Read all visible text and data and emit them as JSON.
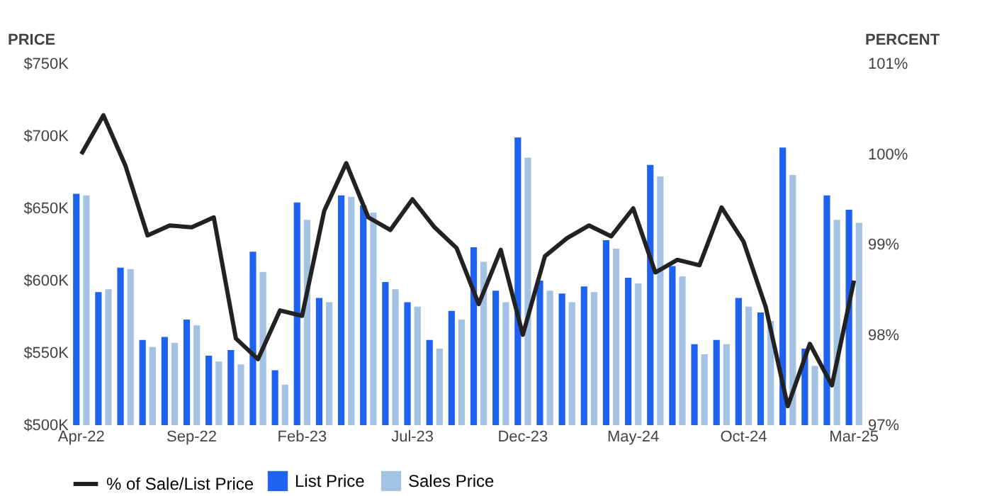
{
  "chart_data": {
    "type": "bar",
    "categories": [
      "Apr-22",
      null,
      null,
      null,
      null,
      "Sep-22",
      null,
      null,
      null,
      null,
      "Feb-23",
      null,
      null,
      null,
      null,
      "Jul-23",
      null,
      null,
      null,
      null,
      "Dec-23",
      null,
      null,
      null,
      null,
      "May-24",
      null,
      null,
      null,
      null,
      "Oct-24",
      null,
      null,
      null,
      null,
      "Mar-25"
    ],
    "series": [
      {
        "name": "% of Sale/List Price",
        "type": "line",
        "axis": "y2",
        "color": "#222222",
        "values": [
          100.0,
          100.43,
          99.87,
          99.1,
          99.21,
          99.19,
          99.3,
          97.96,
          97.73,
          98.27,
          98.21,
          99.37,
          99.9,
          99.3,
          99.16,
          99.5,
          99.19,
          98.96,
          98.34,
          98.94,
          98.0,
          98.87,
          99.07,
          99.21,
          99.09,
          99.4,
          98.69,
          98.83,
          98.77,
          99.41,
          99.03,
          98.31,
          97.21,
          97.9,
          97.44,
          98.6
        ]
      },
      {
        "name": "List Price",
        "type": "bar",
        "color": "#1f62f0",
        "values": [
          660000,
          592000,
          609000,
          559000,
          561000,
          573000,
          548000,
          552000,
          620000,
          538000,
          654000,
          588000,
          659000,
          652000,
          599000,
          585000,
          559000,
          579000,
          623000,
          593000,
          699000,
          600000,
          591000,
          596000,
          628000,
          602000,
          680000,
          610000,
          556000,
          559000,
          588000,
          578000,
          692000,
          553000,
          659000,
          649000
        ]
      },
      {
        "name": "Sales Price",
        "type": "bar",
        "color": "#a4c2e4",
        "values": [
          659000,
          594000,
          608000,
          554000,
          557000,
          569000,
          544000,
          542000,
          606000,
          528000,
          642000,
          585000,
          658000,
          647000,
          594000,
          582000,
          553000,
          573000,
          613000,
          585000,
          685000,
          593000,
          585000,
          592000,
          622000,
          598000,
          672000,
          603000,
          549000,
          556000,
          582000,
          572000,
          673000,
          541000,
          642000,
          640000
        ]
      }
    ],
    "ylabel": "PRICE",
    "y2label": "PERCENT",
    "ylim": [
      500000,
      750000
    ],
    "yticks": [
      {
        "value": 500000,
        "label": "$500K"
      },
      {
        "value": 550000,
        "label": "$550K"
      },
      {
        "value": 600000,
        "label": "$600K"
      },
      {
        "value": 650000,
        "label": "$650K"
      },
      {
        "value": 700000,
        "label": "$700K"
      },
      {
        "value": 750000,
        "label": "$750K"
      }
    ],
    "y2lim": [
      97,
      101
    ],
    "y2ticks": [
      {
        "value": 97,
        "label": "97%"
      },
      {
        "value": 98,
        "label": "98%"
      },
      {
        "value": 99,
        "label": "99%"
      },
      {
        "value": 100,
        "label": "100%"
      },
      {
        "value": 101,
        "label": "101%"
      }
    ],
    "legend": "bottom",
    "grid": false,
    "marker": "none",
    "line_style": "solid"
  }
}
